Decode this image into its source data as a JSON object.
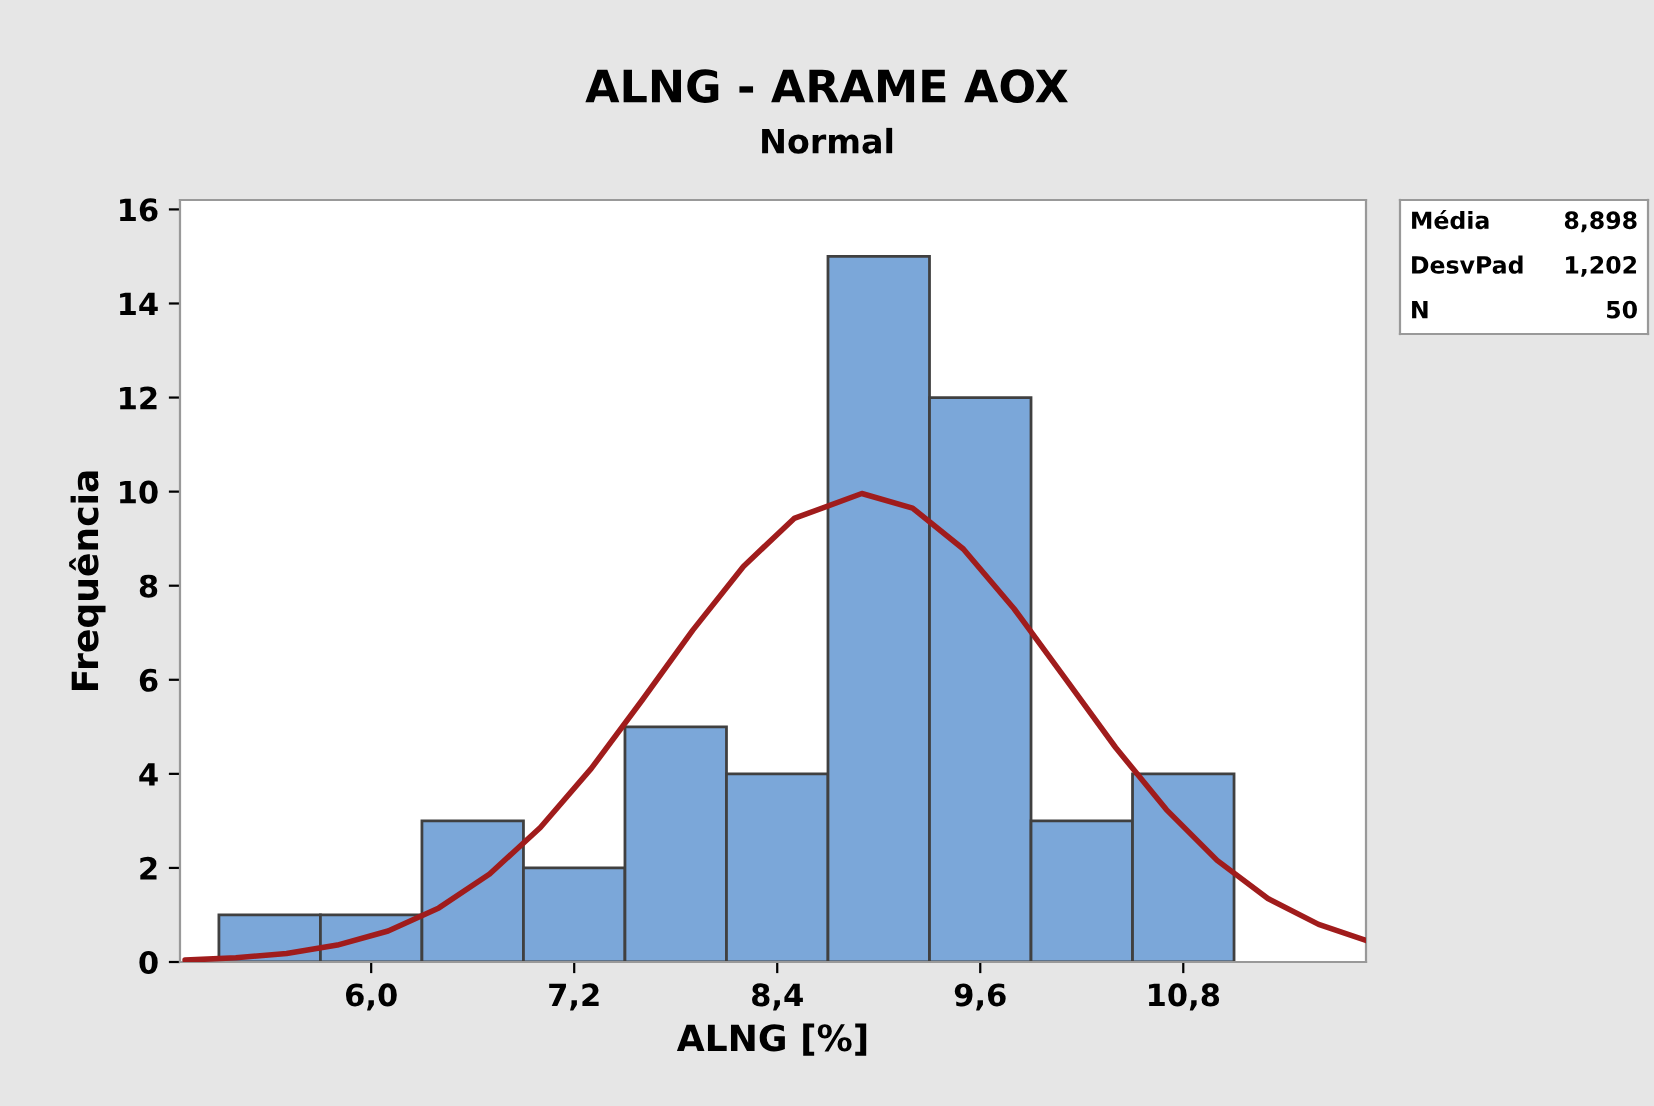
{
  "chart_data": {
    "type": "histogram",
    "title": "ALNG - ARAME AOX",
    "subtitle": "Normal",
    "xlabel": "ALNG [%]",
    "ylabel": "Frequência",
    "bins": [
      5.1,
      5.7,
      6.3,
      6.9,
      7.5,
      8.1,
      8.7,
      9.3,
      9.9,
      10.5,
      11.1
    ],
    "values": [
      1,
      1,
      3,
      2,
      5,
      4,
      15,
      12,
      3,
      4
    ],
    "color": "#7ba7d9",
    "series": [
      {
        "type": "line",
        "color": "#a01c1c",
        "x": [
          4.9,
          5.2,
          5.5,
          5.8,
          6.1,
          6.4,
          6.7,
          7.0,
          7.3,
          7.6,
          7.9,
          8.2,
          8.5,
          8.9,
          9.2,
          9.5,
          9.8,
          10.1,
          10.4,
          10.7,
          11.0,
          11.3,
          11.6,
          11.88
        ],
        "values": [
          0.04,
          0.09,
          0.18,
          0.36,
          0.66,
          1.15,
          1.87,
          2.86,
          4.11,
          5.56,
          7.05,
          8.41,
          9.43,
          9.96,
          9.65,
          8.78,
          7.51,
          6.04,
          4.56,
          3.24,
          2.16,
          1.35,
          0.8,
          0.46
        ]
      }
    ],
    "annotations": [
      "Média",
      "8,898",
      "DesvPad",
      "1,202",
      "N",
      "50"
    ],
    "xlim": [
      4.87,
      11.88
    ],
    "ylim": [
      0,
      16.2
    ],
    "xticks": [
      {
        "value": 6.0,
        "label": "6,0"
      },
      {
        "value": 7.2,
        "label": "7,2"
      },
      {
        "value": 8.4,
        "label": "8,4"
      },
      {
        "value": 9.6,
        "label": "9,6"
      },
      {
        "value": 10.8,
        "label": "10,8"
      }
    ],
    "yticks": [
      0,
      2,
      4,
      6,
      8,
      10,
      12,
      14,
      16
    ],
    "grid": false,
    "legend": false
  }
}
